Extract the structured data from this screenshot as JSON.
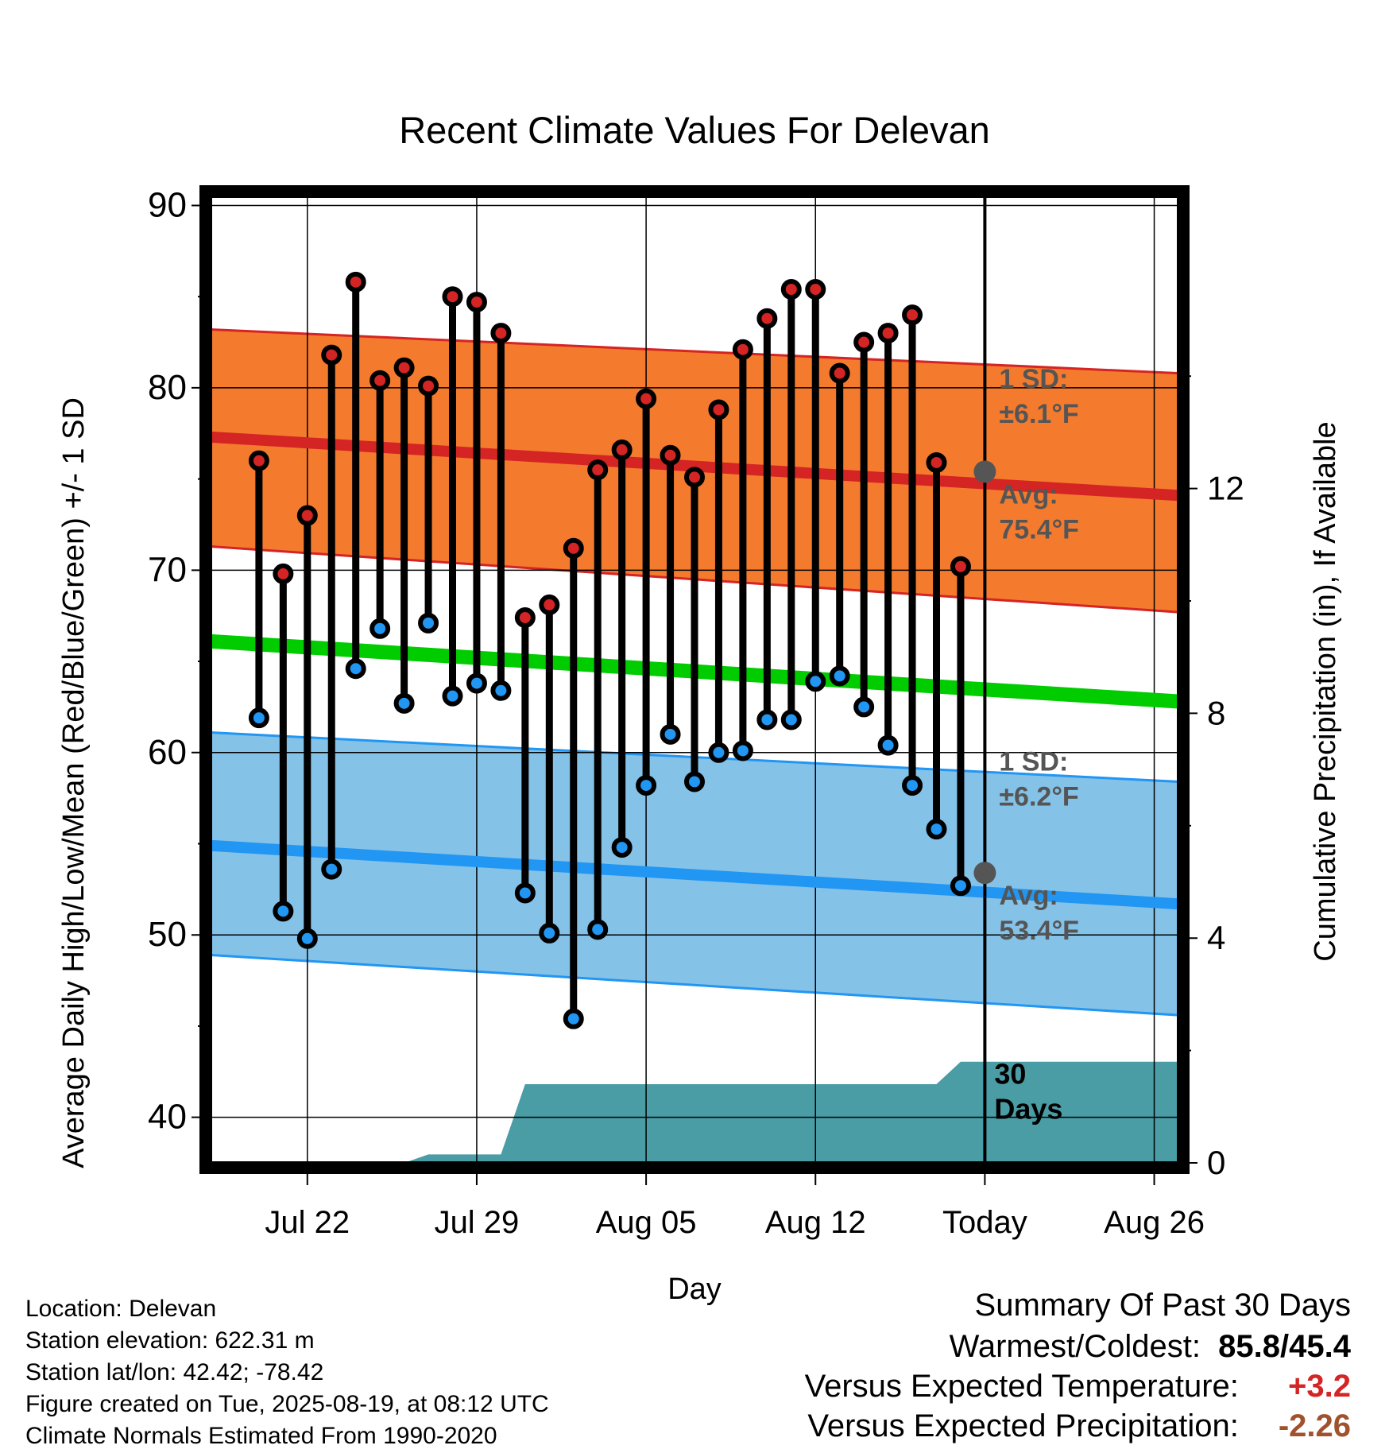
{
  "chart_data": {
    "type": "line",
    "title": "Recent Climate Values For Delevan",
    "xlabel": "Day",
    "ylabel": "Average Daily High/Low/Mean (Red/Blue/Green) +/- 1 SD",
    "y2label": "Cumulative Precipitation (in), If Available",
    "ylim": [
      37.5,
      90.5
    ],
    "y2lim": [
      0,
      17.2
    ],
    "yticks": [
      40,
      50,
      60,
      70,
      80,
      90
    ],
    "y2ticks": [
      0,
      4,
      8,
      12
    ],
    "x_range": [
      "2025-07-18",
      "2025-08-27"
    ],
    "x_ticks": [
      {
        "date": "2025-07-22",
        "label": "Jul 22"
      },
      {
        "date": "2025-07-29",
        "label": "Jul 29"
      },
      {
        "date": "2025-08-05",
        "label": "Aug 05"
      },
      {
        "date": "2025-08-12",
        "label": "Aug 12"
      },
      {
        "date": "2025-08-19",
        "label": "Today"
      },
      {
        "date": "2025-08-26",
        "label": "Aug 26"
      }
    ],
    "grid": true,
    "today": "2025-08-19",
    "dates": [
      "2025-07-20",
      "2025-07-21",
      "2025-07-22",
      "2025-07-23",
      "2025-07-24",
      "2025-07-25",
      "2025-07-26",
      "2025-07-27",
      "2025-07-28",
      "2025-07-29",
      "2025-07-30",
      "2025-07-31",
      "2025-08-01",
      "2025-08-02",
      "2025-08-03",
      "2025-08-04",
      "2025-08-05",
      "2025-08-06",
      "2025-08-07",
      "2025-08-08",
      "2025-08-09",
      "2025-08-10",
      "2025-08-11",
      "2025-08-12",
      "2025-08-13",
      "2025-08-14",
      "2025-08-15",
      "2025-08-16",
      "2025-08-17",
      "2025-08-18"
    ],
    "series": [
      {
        "name": "High",
        "color": "#d42424",
        "values": [
          76.0,
          69.8,
          73.0,
          81.8,
          85.8,
          80.4,
          81.1,
          80.1,
          85.0,
          84.7,
          83.0,
          67.4,
          68.1,
          71.2,
          75.5,
          76.6,
          79.4,
          76.3,
          75.1,
          78.8,
          82.1,
          83.8,
          85.4,
          85.4,
          80.8,
          82.5,
          83.0,
          84.0,
          75.9,
          70.2
        ]
      },
      {
        "name": "Low",
        "color": "#2196f3",
        "values": [
          61.9,
          51.3,
          49.8,
          53.6,
          64.6,
          66.8,
          62.7,
          67.1,
          63.1,
          63.8,
          63.4,
          52.3,
          50.1,
          45.4,
          50.3,
          54.8,
          58.2,
          61.0,
          58.4,
          60.0,
          60.1,
          61.8,
          61.8,
          63.9,
          64.2,
          62.5,
          60.4,
          58.2,
          55.8,
          52.7
        ]
      }
    ],
    "normals": {
      "dates": [
        "2025-07-18",
        "2025-08-27"
      ],
      "high_mean": [
        77.3,
        74.1
      ],
      "high_upper": [
        83.2,
        80.8
      ],
      "high_lower": [
        71.3,
        67.7
      ],
      "low_mean": [
        54.9,
        51.7
      ],
      "low_upper": [
        61.1,
        58.4
      ],
      "low_lower": [
        48.9,
        45.6
      ],
      "mean": [
        66.1,
        62.8
      ],
      "colors": {
        "high_band": "#f47b2e",
        "high_line": "#d42424",
        "low_band": "#85c2e8",
        "low_line": "#2196f3",
        "mean_line": "#00cc00"
      }
    },
    "precip": {
      "color": "#4a9ca5",
      "dates": [
        "2025-07-18",
        "2025-07-26",
        "2025-07-27",
        "2025-07-30",
        "2025-07-31",
        "2025-08-01",
        "2025-08-17",
        "2025-08-18",
        "2025-08-27"
      ],
      "values": [
        0,
        0,
        0.15,
        0.15,
        1.4,
        1.4,
        1.4,
        1.8,
        1.8
      ]
    },
    "annotations": {
      "high_sd": [
        "1 SD:",
        "±6.1°F"
      ],
      "high_avg": [
        "Avg:",
        "75.4°F"
      ],
      "low_sd": [
        "1 SD:",
        "±6.2°F"
      ],
      "low_avg": [
        "Avg:",
        "53.4°F"
      ],
      "today_high_avg": 75.4,
      "today_low_avg": 53.4,
      "period": [
        "30",
        "Days"
      ]
    }
  },
  "info": {
    "location": "Location: Delevan",
    "elevation": "Station elevation: 622.31 m",
    "latlon": "Station lat/lon: 42.42; -78.42",
    "created": "Figure created on Tue, 2025-08-19, at 08:12 UTC",
    "normals": "Climate Normals Estimated From 1990-2020"
  },
  "summary": {
    "title": "Summary Of Past 30 Days",
    "warmest_label": "Warmest/Coldest:",
    "warmest_value": "85.8/45.4",
    "temp_label": "Versus Expected Temperature:",
    "temp_value": "+3.2",
    "temp_color": "#d42424",
    "precip_label": "Versus Expected Precipitation:",
    "precip_value": "-2.26",
    "precip_color": "#a0522d"
  }
}
